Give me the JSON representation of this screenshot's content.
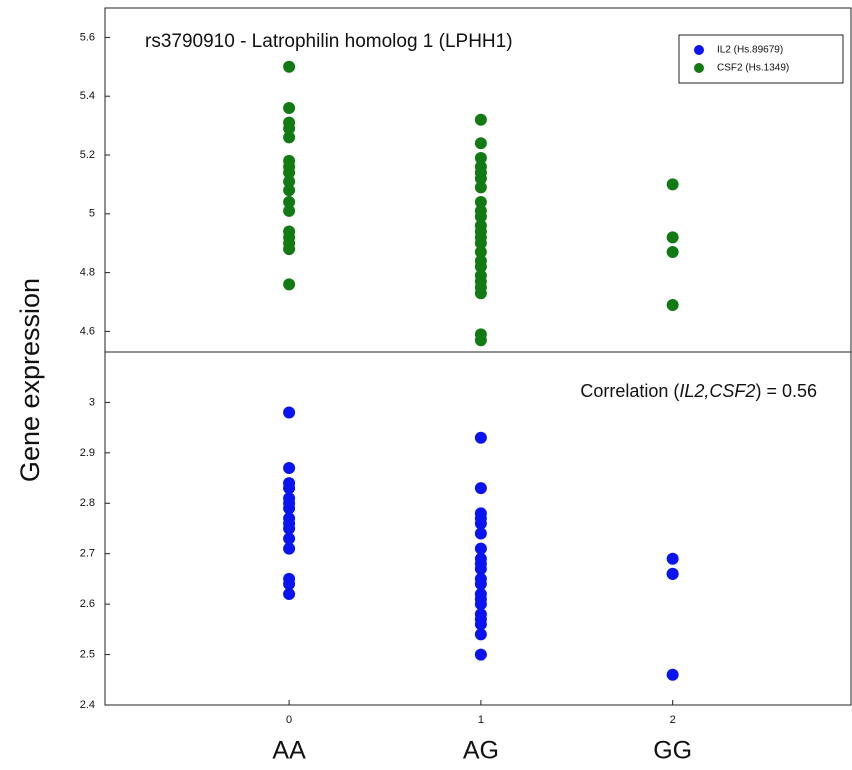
{
  "ylabel": "Gene expression",
  "category_labels": [
    "AA",
    "AG",
    "GG"
  ],
  "chart_data": [
    {
      "type": "scatter",
      "title": "rs3790910 - Latrophilin homolog 1 (LPHH1)",
      "legend": "upper right",
      "xlim": [
        -0.96,
        2.93
      ],
      "ylim": [
        4.53,
        5.7
      ],
      "yticks": [
        4.6,
        4.8,
        5,
        5.2,
        5.4,
        5.6
      ],
      "x": [
        0,
        0,
        0,
        0,
        0,
        0,
        0,
        0,
        0,
        0,
        0,
        0,
        0,
        0,
        0,
        0,
        0,
        1,
        1,
        1,
        1,
        1,
        1,
        1,
        1,
        1,
        1,
        1,
        1,
        1,
        1,
        1,
        1,
        1,
        1,
        1,
        1,
        1,
        1,
        1,
        2,
        2,
        2,
        2
      ],
      "series": [
        {
          "name": "CSF2 (Hs.1349)",
          "color": "#127a12",
          "values": [
            5.5,
            5.36,
            5.31,
            5.29,
            5.26,
            5.18,
            5.16,
            5.14,
            5.11,
            5.08,
            5.04,
            5.01,
            4.94,
            4.92,
            4.9,
            4.88,
            4.76,
            5.32,
            5.24,
            5.19,
            5.16,
            5.14,
            5.12,
            5.09,
            5.04,
            5.01,
            4.99,
            4.96,
            4.94,
            4.92,
            4.9,
            4.87,
            4.84,
            4.82,
            4.79,
            4.77,
            4.75,
            4.73,
            4.59,
            4.57,
            5.1,
            4.92,
            4.87,
            4.69
          ]
        }
      ]
    },
    {
      "type": "scatter",
      "annotation": {
        "prefix": "Correlation (",
        "genes": "IL2,CSF2",
        "suffix": ") = 0.56"
      },
      "xlim": [
        -0.96,
        2.93
      ],
      "ylim": [
        2.4,
        3.1
      ],
      "xticks": [
        0,
        1,
        2
      ],
      "yticks": [
        2.4,
        2.5,
        2.6,
        2.7,
        2.8,
        2.9,
        3
      ],
      "x": [
        0,
        0,
        0,
        0,
        0,
        0,
        0,
        0,
        0,
        0,
        0,
        0,
        0,
        0,
        0,
        1,
        1,
        1,
        1,
        1,
        1,
        1,
        1,
        1,
        1,
        1,
        1,
        1,
        1,
        1,
        1,
        1,
        1,
        1,
        1,
        2,
        2,
        2,
        2
      ],
      "series": [
        {
          "name": "IL2 (Hs.89679)",
          "color": "#0a14f0",
          "values": [
            2.98,
            2.87,
            2.84,
            2.83,
            2.81,
            2.8,
            2.79,
            2.77,
            2.76,
            2.75,
            2.73,
            2.71,
            2.65,
            2.64,
            2.62,
            2.93,
            2.83,
            2.78,
            2.77,
            2.76,
            2.74,
            2.71,
            2.69,
            2.68,
            2.67,
            2.65,
            2.64,
            2.62,
            2.61,
            2.6,
            2.58,
            2.57,
            2.56,
            2.54,
            2.5,
            2.69,
            2.66,
            2.66,
            2.46
          ]
        }
      ]
    }
  ]
}
